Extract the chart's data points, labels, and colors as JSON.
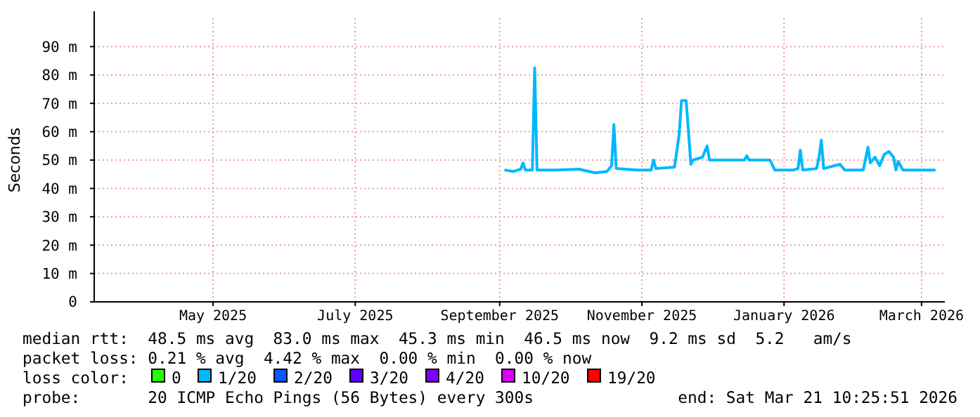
{
  "chart_data": {
    "type": "line",
    "ylabel": "Seconds",
    "legend_title": "loss color:",
    "legend": "bottom",
    "grid": true,
    "marker": "none",
    "line_style": "solid",
    "xlim": [
      "2025-03-11",
      "2026-03-11"
    ],
    "xticks": [
      {
        "value": "2025-05-01",
        "label": "May 2025"
      },
      {
        "value": "2025-07-01",
        "label": "July 2025"
      },
      {
        "value": "2025-09-01",
        "label": "September 2025"
      },
      {
        "value": "2025-11-01",
        "label": "November 2025"
      },
      {
        "value": "2026-01-01",
        "label": "January 2026"
      },
      {
        "value": "2026-03-01",
        "label": "March 2026"
      }
    ],
    "ylim": [
      0,
      100
    ],
    "yticks": [
      0,
      {
        "value": 10,
        "label": "10 m"
      },
      {
        "value": 20,
        "label": "20 m"
      },
      {
        "value": 30,
        "label": "30 m"
      },
      {
        "value": 40,
        "label": "40 m"
      },
      {
        "value": 50,
        "label": "50 m"
      },
      {
        "value": 60,
        "label": "60 m"
      },
      {
        "value": 70,
        "label": "70 m"
      },
      {
        "value": 80,
        "label": "80 m"
      },
      {
        "value": 90,
        "label": "90 m"
      }
    ],
    "x": [
      "2025-09-03",
      "2025-09-07",
      "2025-09-10",
      "2025-09-11",
      "2025-09-12",
      "2025-09-15",
      "2025-09-16",
      "2025-09-17",
      "2025-09-25",
      "2025-10-05",
      "2025-10-12",
      "2025-10-17",
      "2025-10-19",
      "2025-10-20",
      "2025-10-21",
      "2025-10-30",
      "2025-11-05",
      "2025-11-06",
      "2025-11-07",
      "2025-11-15",
      "2025-11-17",
      "2025-11-18",
      "2025-11-20",
      "2025-11-21",
      "2025-11-22",
      "2025-11-23",
      "2025-11-27",
      "2025-11-29",
      "2025-11-30",
      "2025-12-15",
      "2025-12-16",
      "2025-12-17",
      "2025-12-26",
      "2025-12-28",
      "2026-01-05",
      "2026-01-07",
      "2026-01-08",
      "2026-01-09",
      "2026-01-15",
      "2026-01-16",
      "2026-01-17",
      "2026-01-18",
      "2026-01-25",
      "2026-01-27",
      "2026-02-04",
      "2026-02-05",
      "2026-02-06",
      "2026-02-07",
      "2026-02-09",
      "2026-02-11",
      "2026-02-13",
      "2026-02-15",
      "2026-02-17",
      "2026-02-18",
      "2026-02-19",
      "2026-02-21",
      "2026-03-07"
    ],
    "series": [
      {
        "name": "0",
        "color": "#26ff00",
        "values": [
          null,
          null,
          null,
          null,
          null,
          null,
          null,
          null,
          null,
          null,
          null,
          null,
          null,
          null,
          null,
          null,
          null,
          null,
          null,
          null,
          null,
          null,
          null,
          null,
          null,
          null,
          null,
          null,
          null,
          null,
          null,
          null,
          null,
          null,
          null,
          null,
          null,
          null,
          null,
          null,
          null,
          null,
          null,
          null,
          null,
          null,
          null,
          null,
          null,
          null,
          null,
          null,
          null,
          null,
          null,
          null,
          null
        ]
      },
      {
        "name": "1/20",
        "color": "#00b8ff",
        "values": [
          46.5,
          46,
          46.8,
          49,
          46.5,
          46.5,
          82.5,
          46.5,
          46.5,
          46.8,
          45.5,
          46,
          48,
          62.5,
          47,
          46.5,
          46.5,
          50,
          47,
          47.5,
          59,
          71,
          71,
          60,
          48.5,
          50,
          51,
          55,
          50,
          50,
          51.5,
          50,
          50,
          46.5,
          46.5,
          47,
          53.5,
          46.5,
          47,
          51,
          57,
          47,
          48.5,
          46.5,
          46.5,
          50.5,
          54.5,
          49,
          51,
          48,
          52,
          53,
          51,
          46.5,
          49.5,
          46.5,
          46.5
        ]
      },
      {
        "name": "2/20",
        "color": "#0059ff",
        "values": [
          null,
          null,
          null,
          null,
          null,
          null,
          null,
          null,
          null,
          null,
          null,
          null,
          null,
          null,
          null,
          null,
          null,
          null,
          null,
          null,
          null,
          null,
          null,
          null,
          null,
          null,
          null,
          null,
          null,
          null,
          null,
          null,
          null,
          null,
          null,
          null,
          null,
          null,
          null,
          null,
          null,
          null,
          null,
          null,
          null,
          null,
          null,
          null,
          null,
          null,
          null,
          null,
          null,
          null,
          null,
          null,
          null
        ]
      },
      {
        "name": "3/20",
        "color": "#5e00ff",
        "values": [
          null,
          null,
          null,
          null,
          null,
          null,
          null,
          null,
          null,
          null,
          null,
          null,
          null,
          null,
          null,
          null,
          null,
          null,
          null,
          null,
          null,
          null,
          null,
          null,
          null,
          null,
          null,
          null,
          null,
          null,
          null,
          null,
          null,
          null,
          null,
          null,
          null,
          null,
          null,
          null,
          null,
          null,
          null,
          null,
          null,
          null,
          null,
          null,
          null,
          null,
          null,
          null,
          null,
          null,
          null,
          null,
          null
        ]
      },
      {
        "name": "4/20",
        "color": "#7e00ff",
        "values": [
          null,
          null,
          null,
          null,
          null,
          null,
          null,
          null,
          null,
          null,
          null,
          null,
          null,
          null,
          null,
          null,
          null,
          null,
          null,
          null,
          null,
          null,
          null,
          null,
          null,
          null,
          null,
          null,
          null,
          null,
          null,
          null,
          null,
          null,
          null,
          null,
          null,
          null,
          null,
          null,
          null,
          null,
          null,
          null,
          null,
          null,
          null,
          null,
          null,
          null,
          null,
          null,
          null,
          null,
          null,
          null,
          null
        ]
      },
      {
        "name": "10/20",
        "color": "#dd00ff",
        "values": [
          null,
          null,
          null,
          null,
          null,
          null,
          null,
          null,
          null,
          null,
          null,
          null,
          null,
          null,
          null,
          null,
          null,
          null,
          null,
          null,
          null,
          null,
          null,
          null,
          null,
          null,
          null,
          null,
          null,
          null,
          null,
          null,
          null,
          null,
          null,
          null,
          null,
          null,
          null,
          null,
          null,
          null,
          null,
          null,
          null,
          null,
          null,
          null,
          null,
          null,
          null,
          null,
          null,
          null,
          null,
          null,
          null
        ]
      },
      {
        "name": "19/20",
        "color": "#ff0000",
        "values": [
          null,
          null,
          null,
          null,
          null,
          null,
          null,
          null,
          null,
          null,
          null,
          null,
          null,
          null,
          null,
          null,
          null,
          null,
          null,
          null,
          null,
          null,
          null,
          null,
          null,
          null,
          null,
          null,
          null,
          null,
          null,
          null,
          null,
          null,
          null,
          null,
          null,
          null,
          null,
          null,
          null,
          null,
          null,
          null,
          null,
          null,
          null,
          null,
          null,
          null,
          null,
          null,
          null,
          null,
          null,
          null,
          null
        ]
      }
    ],
    "annotations": [
      "median rtt:  48.5 ms avg  83.0 ms max  45.3 ms min  46.5 ms now  9.2 ms sd  5.2   am/s",
      "packet loss: 0.21 % avg  4.42 % max  0.00 % min  0.00 % now",
      "probe:       20 ICMP Echo Pings (56 Bytes) every 300s",
      "end: Sat Mar 21 10:25:51 2026"
    ]
  }
}
